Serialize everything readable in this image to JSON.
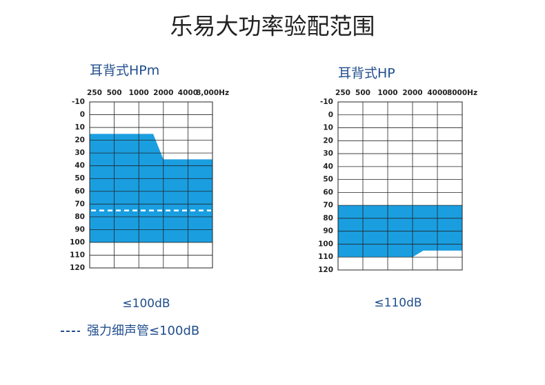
{
  "title": "乐易大功率验配范围",
  "legend_label": "强力细声管≤100dB",
  "chart_data": [
    {
      "type": "range",
      "title": "耳背式HPm",
      "caption": "≤100dB",
      "x": [
        250,
        1500,
        2000,
        8000
      ],
      "y_top": [
        15,
        15,
        35,
        35
      ],
      "y_bottom": [
        100,
        100,
        100,
        100
      ],
      "reference_line": 75,
      "color": "#1a9ee0",
      "xscale": "log",
      "xlim": [
        250,
        8000
      ],
      "xticks": [
        250,
        500,
        1000,
        2000,
        4000,
        {
          "value": 8000,
          "label": "8,000Hz"
        }
      ],
      "ylim": [
        -10,
        120
      ],
      "y_inverted": true,
      "yticks": [
        -10,
        0,
        10,
        20,
        30,
        40,
        50,
        60,
        70,
        80,
        90,
        100,
        110,
        120
      ],
      "grid": true
    },
    {
      "type": "range",
      "title": "耳背式HP",
      "caption": "≤110dB",
      "x": [
        250,
        2000,
        2700,
        8000
      ],
      "y_top": [
        70,
        70,
        70,
        70
      ],
      "y_bottom": [
        110,
        110,
        105,
        105
      ],
      "color": "#1a9ee0",
      "xscale": "log",
      "xlim": [
        250,
        8000
      ],
      "xticks": [
        250,
        500,
        1000,
        2000,
        4000,
        {
          "value": 8000,
          "label": "8000Hz"
        }
      ],
      "ylim": [
        -10,
        120
      ],
      "y_inverted": true,
      "yticks": [
        -10,
        0,
        10,
        20,
        30,
        40,
        50,
        60,
        70,
        80,
        90,
        100,
        110,
        120
      ],
      "grid": true
    }
  ]
}
